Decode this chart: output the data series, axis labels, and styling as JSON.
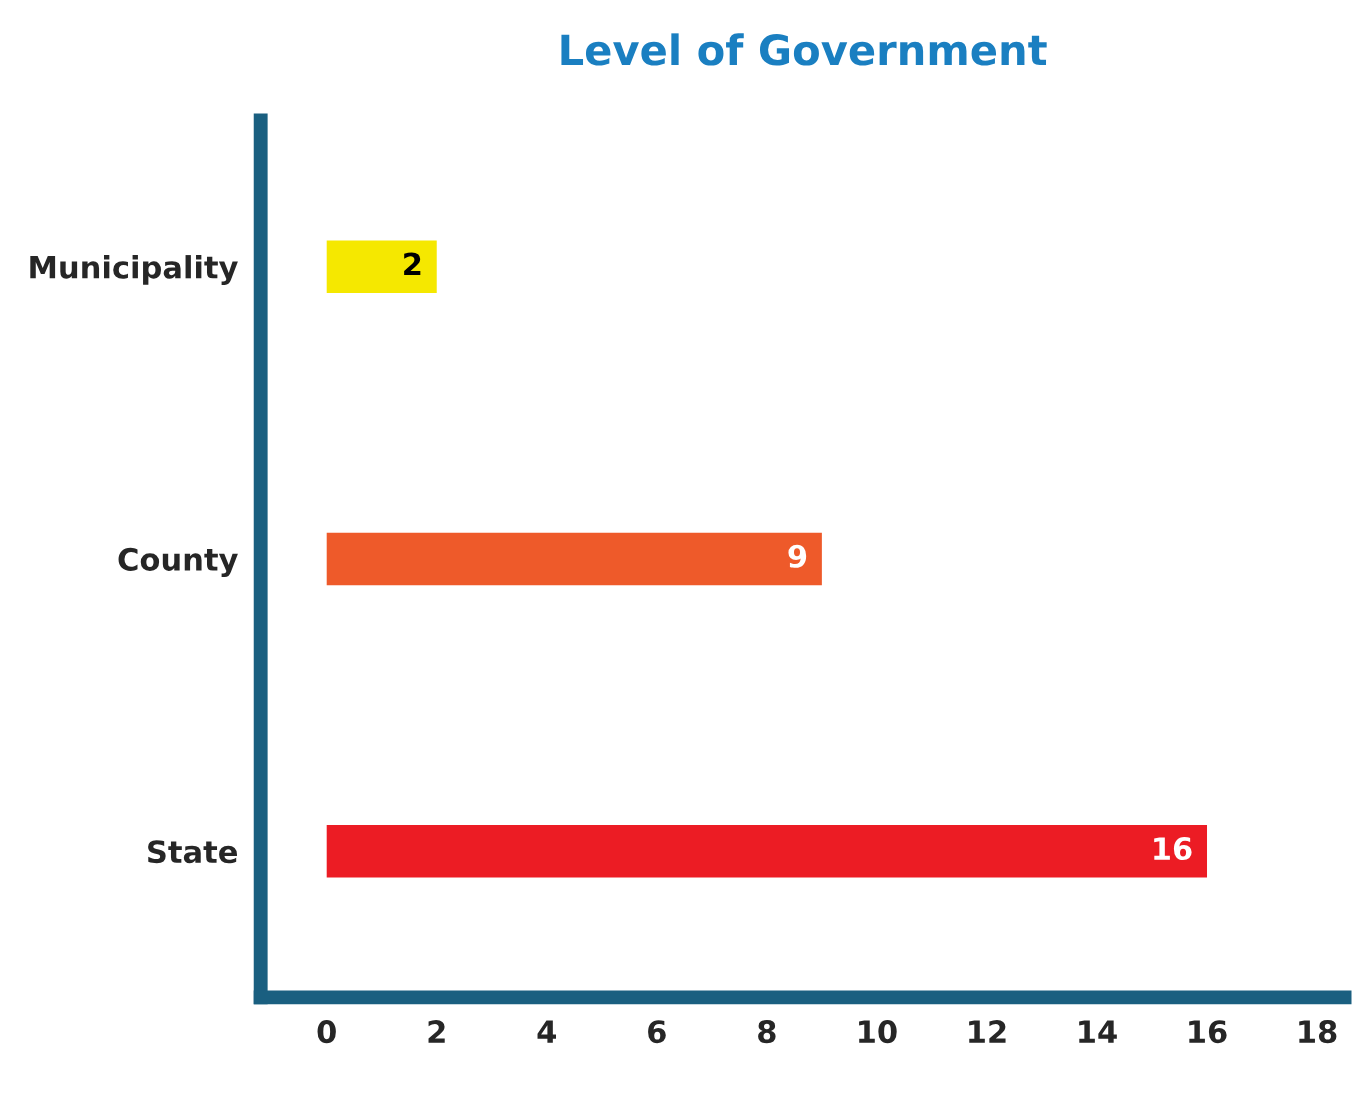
{
  "chart_data": {
    "type": "bar",
    "orientation": "horizontal",
    "title": "Level of Government",
    "categories": [
      "Municipality",
      "County",
      "State"
    ],
    "values": [
      2,
      9,
      16
    ],
    "colors": [
      "#f5e800",
      "#ee5a2a",
      "#ec1c24"
    ],
    "xlim": [
      -1.2,
      18.5
    ],
    "xticks": [
      0,
      2,
      4,
      6,
      8,
      10,
      12,
      14,
      16,
      18
    ],
    "data_labels": true,
    "grid": false,
    "legend": false
  }
}
